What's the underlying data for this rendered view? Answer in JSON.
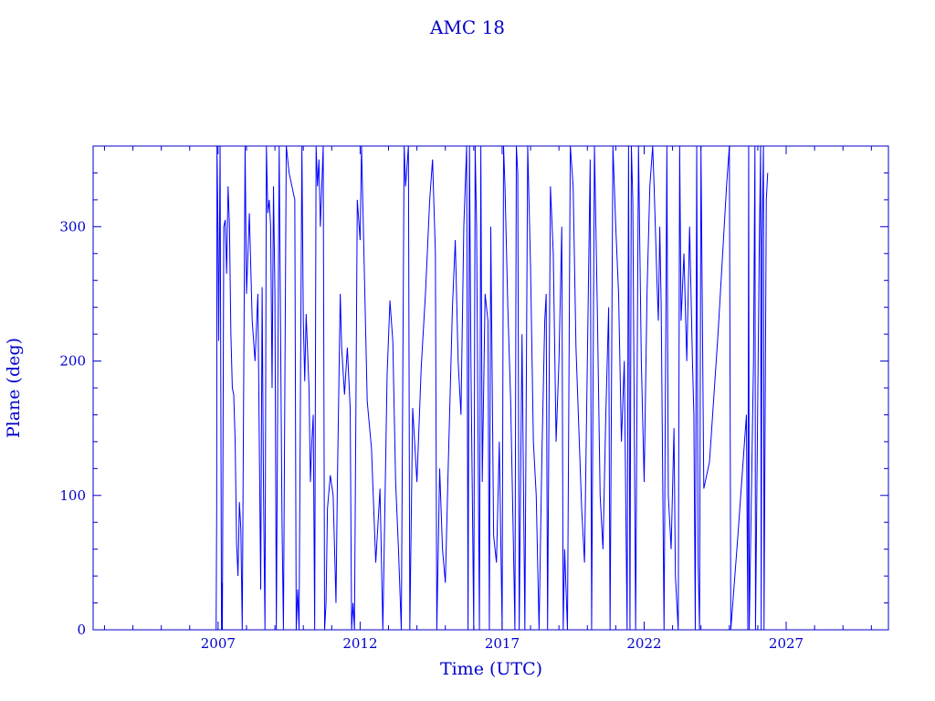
{
  "chart_data": {
    "type": "line",
    "title": "AMC 18",
    "xlabel": "Time (UTC)",
    "ylabel": "Plane (deg)",
    "xlim": [
      2002.6,
      2030.6
    ],
    "ylim": [
      0,
      360
    ],
    "x_ticks": [
      {
        "value": 2007,
        "label": "2007"
      },
      {
        "value": 2012,
        "label": "2012"
      },
      {
        "value": 2017,
        "label": "2017"
      },
      {
        "value": 2022,
        "label": "2022"
      },
      {
        "value": 2027,
        "label": "2027"
      }
    ],
    "y_ticks": [
      {
        "value": 0,
        "label": "0"
      },
      {
        "value": 100,
        "label": "100"
      },
      {
        "value": 200,
        "label": "200"
      },
      {
        "value": 300,
        "label": "300"
      }
    ],
    "x_minor_step": 1,
    "y_minor_step": 20,
    "grid": false,
    "line_color": "#0000ff",
    "axis_color": "#0000cc",
    "series": [
      {
        "values": [
          [
            2006.93,
            0
          ],
          [
            2006.95,
            90
          ],
          [
            2006.96,
            360
          ],
          [
            2006.99,
            310
          ],
          [
            2007.02,
            215
          ],
          [
            2007.05,
            300
          ],
          [
            2007.07,
            360
          ],
          [
            2007.12,
            0
          ],
          [
            2007.13,
            35
          ],
          [
            2007.15,
            0
          ],
          [
            2007.2,
            300
          ],
          [
            2007.25,
            305
          ],
          [
            2007.3,
            265
          ],
          [
            2007.35,
            330
          ],
          [
            2007.4,
            300
          ],
          [
            2007.45,
            220
          ],
          [
            2007.5,
            180
          ],
          [
            2007.55,
            175
          ],
          [
            2007.6,
            140
          ],
          [
            2007.65,
            65
          ],
          [
            2007.7,
            40
          ],
          [
            2007.75,
            95
          ],
          [
            2007.8,
            75
          ],
          [
            2007.85,
            0
          ],
          [
            2007.95,
            360
          ],
          [
            2008.0,
            250
          ],
          [
            2008.1,
            310
          ],
          [
            2008.2,
            230
          ],
          [
            2008.3,
            200
          ],
          [
            2008.4,
            250
          ],
          [
            2008.5,
            30
          ],
          [
            2008.55,
            255
          ],
          [
            2008.6,
            100
          ],
          [
            2008.65,
            0
          ],
          [
            2008.7,
            360
          ],
          [
            2008.75,
            310
          ],
          [
            2008.8,
            320
          ],
          [
            2008.85,
            300
          ],
          [
            2008.9,
            180
          ],
          [
            2008.95,
            330
          ],
          [
            2009.0,
            250
          ],
          [
            2009.05,
            0
          ],
          [
            2009.15,
            360
          ],
          [
            2009.2,
            220
          ],
          [
            2009.25,
            80
          ],
          [
            2009.3,
            0
          ],
          [
            2009.4,
            360
          ],
          [
            2009.5,
            340
          ],
          [
            2009.6,
            330
          ],
          [
            2009.7,
            320
          ],
          [
            2009.75,
            0
          ],
          [
            2009.8,
            30
          ],
          [
            2009.85,
            0
          ],
          [
            2009.95,
            360
          ],
          [
            2010.0,
            230
          ],
          [
            2010.05,
            185
          ],
          [
            2010.1,
            235
          ],
          [
            2010.2,
            180
          ],
          [
            2010.25,
            110
          ],
          [
            2010.3,
            140
          ],
          [
            2010.35,
            160
          ],
          [
            2010.4,
            0
          ],
          [
            2010.45,
            360
          ],
          [
            2010.5,
            330
          ],
          [
            2010.55,
            350
          ],
          [
            2010.6,
            300
          ],
          [
            2010.7,
            360
          ],
          [
            2010.75,
            0
          ],
          [
            2010.8,
            20
          ],
          [
            2010.85,
            90
          ],
          [
            2010.95,
            115
          ],
          [
            2011.05,
            100
          ],
          [
            2011.15,
            20
          ],
          [
            2011.2,
            110
          ],
          [
            2011.3,
            250
          ],
          [
            2011.35,
            210
          ],
          [
            2011.45,
            175
          ],
          [
            2011.55,
            210
          ],
          [
            2011.65,
            165
          ],
          [
            2011.7,
            0
          ],
          [
            2011.75,
            20
          ],
          [
            2011.8,
            0
          ],
          [
            2011.9,
            320
          ],
          [
            2012.0,
            290
          ],
          [
            2012.05,
            360
          ],
          [
            2012.25,
            170
          ],
          [
            2012.4,
            135
          ],
          [
            2012.55,
            50
          ],
          [
            2012.7,
            105
          ],
          [
            2012.8,
            0
          ],
          [
            2012.95,
            190
          ],
          [
            2013.05,
            245
          ],
          [
            2013.15,
            215
          ],
          [
            2013.25,
            110
          ],
          [
            2013.35,
            60
          ],
          [
            2013.45,
            0
          ],
          [
            2013.55,
            360
          ],
          [
            2013.6,
            330
          ],
          [
            2013.7,
            360
          ],
          [
            2013.75,
            0
          ],
          [
            2013.85,
            165
          ],
          [
            2014.0,
            110
          ],
          [
            2014.15,
            195
          ],
          [
            2014.3,
            250
          ],
          [
            2014.45,
            320
          ],
          [
            2014.55,
            350
          ],
          [
            2014.65,
            280
          ],
          [
            2014.7,
            0
          ],
          [
            2014.8,
            120
          ],
          [
            2014.9,
            60
          ],
          [
            2015.0,
            35
          ],
          [
            2015.1,
            120
          ],
          [
            2015.25,
            240
          ],
          [
            2015.35,
            290
          ],
          [
            2015.45,
            200
          ],
          [
            2015.55,
            160
          ],
          [
            2015.65,
            300
          ],
          [
            2015.75,
            360
          ],
          [
            2015.8,
            0
          ],
          [
            2015.85,
            360
          ],
          [
            2015.9,
            200
          ],
          [
            2016.0,
            0
          ],
          [
            2016.05,
            360
          ],
          [
            2016.1,
            300
          ],
          [
            2016.2,
            0
          ],
          [
            2016.25,
            360
          ],
          [
            2016.3,
            110
          ],
          [
            2016.4,
            250
          ],
          [
            2016.5,
            230
          ],
          [
            2016.55,
            0
          ],
          [
            2016.6,
            300
          ],
          [
            2016.7,
            70
          ],
          [
            2016.8,
            50
          ],
          [
            2016.9,
            140
          ],
          [
            2017.0,
            0
          ],
          [
            2017.05,
            360
          ],
          [
            2017.1,
            330
          ],
          [
            2017.2,
            240
          ],
          [
            2017.3,
            170
          ],
          [
            2017.4,
            60
          ],
          [
            2017.45,
            0
          ],
          [
            2017.5,
            360
          ],
          [
            2017.55,
            340
          ],
          [
            2017.6,
            0
          ],
          [
            2017.7,
            220
          ],
          [
            2017.8,
            0
          ],
          [
            2017.9,
            360
          ],
          [
            2018.0,
            270
          ],
          [
            2018.1,
            140
          ],
          [
            2018.2,
            100
          ],
          [
            2018.3,
            0
          ],
          [
            2018.4,
            130
          ],
          [
            2018.5,
            230
          ],
          [
            2018.55,
            250
          ],
          [
            2018.6,
            0
          ],
          [
            2018.7,
            330
          ],
          [
            2018.8,
            280
          ],
          [
            2018.9,
            140
          ],
          [
            2019.0,
            200
          ],
          [
            2019.1,
            300
          ],
          [
            2019.15,
            0
          ],
          [
            2019.2,
            60
          ],
          [
            2019.3,
            0
          ],
          [
            2019.4,
            360
          ],
          [
            2019.5,
            330
          ],
          [
            2019.6,
            210
          ],
          [
            2019.7,
            150
          ],
          [
            2019.8,
            90
          ],
          [
            2019.9,
            50
          ],
          [
            2020.0,
            200
          ],
          [
            2020.1,
            350
          ],
          [
            2020.15,
            0
          ],
          [
            2020.25,
            360
          ],
          [
            2020.35,
            240
          ],
          [
            2020.45,
            100
          ],
          [
            2020.55,
            60
          ],
          [
            2020.65,
            160
          ],
          [
            2020.75,
            240
          ],
          [
            2020.8,
            0
          ],
          [
            2020.9,
            360
          ],
          [
            2021.0,
            300
          ],
          [
            2021.1,
            250
          ],
          [
            2021.2,
            140
          ],
          [
            2021.3,
            200
          ],
          [
            2021.4,
            0
          ],
          [
            2021.45,
            360
          ],
          [
            2021.5,
            0
          ],
          [
            2021.55,
            360
          ],
          [
            2021.6,
            320
          ],
          [
            2021.7,
            0
          ],
          [
            2021.8,
            360
          ],
          [
            2021.9,
            200
          ],
          [
            2022.0,
            110
          ],
          [
            2022.1,
            250
          ],
          [
            2022.2,
            330
          ],
          [
            2022.3,
            360
          ],
          [
            2022.35,
            330
          ],
          [
            2022.45,
            260
          ],
          [
            2022.5,
            230
          ],
          [
            2022.55,
            300
          ],
          [
            2022.6,
            240
          ],
          [
            2022.7,
            0
          ],
          [
            2022.8,
            360
          ],
          [
            2022.85,
            100
          ],
          [
            2022.95,
            60
          ],
          [
            2023.05,
            150
          ],
          [
            2023.1,
            40
          ],
          [
            2023.2,
            0
          ],
          [
            2023.25,
            360
          ],
          [
            2023.3,
            230
          ],
          [
            2023.4,
            280
          ],
          [
            2023.5,
            200
          ],
          [
            2023.6,
            300
          ],
          [
            2023.7,
            200
          ],
          [
            2023.75,
            160
          ],
          [
            2023.8,
            0
          ],
          [
            2023.85,
            360
          ],
          [
            2023.9,
            50
          ],
          [
            2023.95,
            0
          ],
          [
            2024.0,
            360
          ],
          [
            2024.1,
            105
          ],
          [
            2024.3,
            125
          ],
          [
            2024.6,
            220
          ],
          [
            2024.9,
            330
          ],
          [
            2025.0,
            360
          ],
          [
            2025.05,
            0
          ],
          [
            2025.3,
            70
          ],
          [
            2025.6,
            160
          ],
          [
            2025.65,
            0
          ],
          [
            2025.68,
            360
          ],
          [
            2025.7,
            0
          ],
          [
            2025.85,
            200
          ],
          [
            2025.9,
            360
          ],
          [
            2025.92,
            0
          ],
          [
            2026.05,
            280
          ],
          [
            2026.1,
            360
          ],
          [
            2026.12,
            0
          ],
          [
            2026.15,
            290
          ],
          [
            2026.2,
            360
          ],
          [
            2026.22,
            0
          ],
          [
            2026.3,
            320
          ],
          [
            2026.35,
            340
          ]
        ]
      }
    ]
  }
}
